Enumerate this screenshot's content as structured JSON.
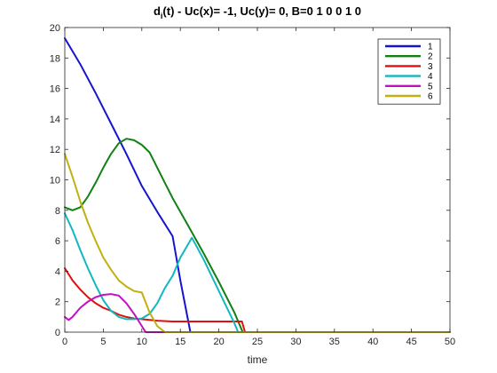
{
  "chart_data": {
    "type": "line",
    "title_main": "d",
    "title_sub": "i",
    "title_rest": "(t) -    Uc(x)= -1, Uc(y)= 0, B=0  1  0  0  1  0",
    "xlabel": "time",
    "ylabel": "",
    "xlim": [
      0,
      50
    ],
    "ylim": [
      0,
      20
    ],
    "xticks": [
      0,
      5,
      10,
      15,
      20,
      25,
      30,
      35,
      40,
      45,
      50
    ],
    "yticks": [
      0,
      2,
      4,
      6,
      8,
      10,
      12,
      14,
      16,
      18,
      20
    ],
    "grid": false,
    "legend_position": "top-right",
    "series": [
      {
        "name": "1",
        "color": "#1515d0",
        "x": [
          0,
          2,
          4,
          6,
          8,
          10,
          12,
          13,
          14,
          15,
          16.3,
          50
        ],
        "y": [
          19.3,
          17.6,
          15.7,
          13.7,
          11.7,
          9.6,
          7.9,
          7.1,
          6.3,
          3.4,
          0,
          0
        ]
      },
      {
        "name": "2",
        "color": "#128012",
        "x": [
          0,
          1,
          2,
          3,
          4,
          5,
          6,
          7,
          8,
          9,
          10,
          11,
          12,
          13,
          14,
          16,
          18,
          20,
          22,
          23.1,
          50
        ],
        "y": [
          8.2,
          8.0,
          8.2,
          8.9,
          9.8,
          10.8,
          11.7,
          12.4,
          12.7,
          12.6,
          12.3,
          11.8,
          10.8,
          9.8,
          8.8,
          7.0,
          5.2,
          3.3,
          1.3,
          0,
          0
        ]
      },
      {
        "name": "3",
        "color": "#e01010",
        "x": [
          0,
          1,
          2,
          3,
          4,
          5,
          6,
          7,
          8,
          9,
          10,
          11,
          12,
          14,
          16,
          18,
          20,
          22,
          23,
          23.4,
          50
        ],
        "y": [
          4.2,
          3.4,
          2.8,
          2.3,
          1.9,
          1.6,
          1.4,
          1.15,
          1.0,
          0.9,
          0.85,
          0.8,
          0.75,
          0.7,
          0.7,
          0.7,
          0.7,
          0.7,
          0.7,
          0,
          0
        ]
      },
      {
        "name": "4",
        "color": "#10b8c0",
        "x": [
          0,
          1,
          2,
          3,
          4,
          5,
          6,
          7,
          8,
          9,
          10,
          11,
          12,
          13,
          14,
          15,
          16.5,
          18,
          20,
          22,
          22.5,
          50
        ],
        "y": [
          7.8,
          6.7,
          5.4,
          4.2,
          3.1,
          2.1,
          1.4,
          1.0,
          0.85,
          0.85,
          0.9,
          1.2,
          1.9,
          2.9,
          3.7,
          4.9,
          6.2,
          4.8,
          2.7,
          0.6,
          0,
          0
        ]
      },
      {
        "name": "5",
        "color": "#c010c0",
        "x": [
          0,
          0.5,
          1,
          2,
          3,
          4,
          5,
          6,
          7,
          8,
          9,
          10,
          10.5,
          11,
          50
        ],
        "y": [
          1.0,
          0.8,
          1.0,
          1.6,
          2.0,
          2.3,
          2.45,
          2.5,
          2.4,
          1.9,
          1.2,
          0.4,
          0,
          0,
          0
        ]
      },
      {
        "name": "6",
        "color": "#c0b010",
        "x": [
          0,
          1,
          2,
          3,
          4,
          5,
          6,
          7,
          8,
          9,
          10,
          11,
          12,
          13,
          50
        ],
        "y": [
          11.7,
          10.2,
          8.6,
          7.2,
          6.0,
          4.9,
          4.1,
          3.4,
          3.0,
          2.7,
          2.6,
          1.3,
          0.4,
          0,
          0
        ]
      }
    ]
  }
}
